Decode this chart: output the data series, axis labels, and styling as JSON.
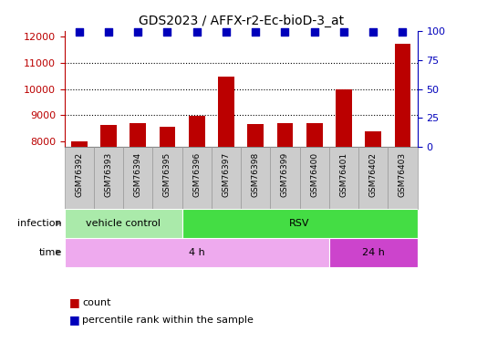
{
  "title": "GDS2023 / AFFX-r2-Ec-bioD-3_at",
  "samples": [
    "GSM76392",
    "GSM76393",
    "GSM76394",
    "GSM76395",
    "GSM76396",
    "GSM76397",
    "GSM76398",
    "GSM76399",
    "GSM76400",
    "GSM76401",
    "GSM76402",
    "GSM76403"
  ],
  "counts": [
    8020,
    8620,
    8720,
    8560,
    8980,
    10480,
    8680,
    8700,
    8700,
    9980,
    8400,
    11700
  ],
  "ylim_left": [
    7800,
    12200
  ],
  "yticks_left": [
    8000,
    9000,
    10000,
    11000,
    12000
  ],
  "yticks_right": [
    0,
    25,
    50,
    75,
    100
  ],
  "ylim_right": [
    0,
    100
  ],
  "bar_color": "#bb0000",
  "dot_color": "#0000bb",
  "dot_percentile": 99,
  "infection_groups": [
    {
      "label": "vehicle control",
      "start": 0,
      "end": 4,
      "color": "#aaeaaa"
    },
    {
      "label": "RSV",
      "start": 4,
      "end": 12,
      "color": "#44dd44"
    }
  ],
  "time_groups": [
    {
      "label": "4 h",
      "start": 0,
      "end": 9,
      "color": "#eeaaee"
    },
    {
      "label": "24 h",
      "start": 9,
      "end": 12,
      "color": "#cc44cc"
    }
  ],
  "legend_count_label": "count",
  "legend_percentile_label": "percentile rank within the sample",
  "infection_label": "infection",
  "time_label": "time",
  "bar_width": 0.55,
  "label_box_color": "#cccccc",
  "label_box_border": "#999999",
  "grid_lines": [
    9000,
    10000,
    11000
  ],
  "grid_style": ":",
  "grid_color": "black",
  "grid_lw": 0.8
}
